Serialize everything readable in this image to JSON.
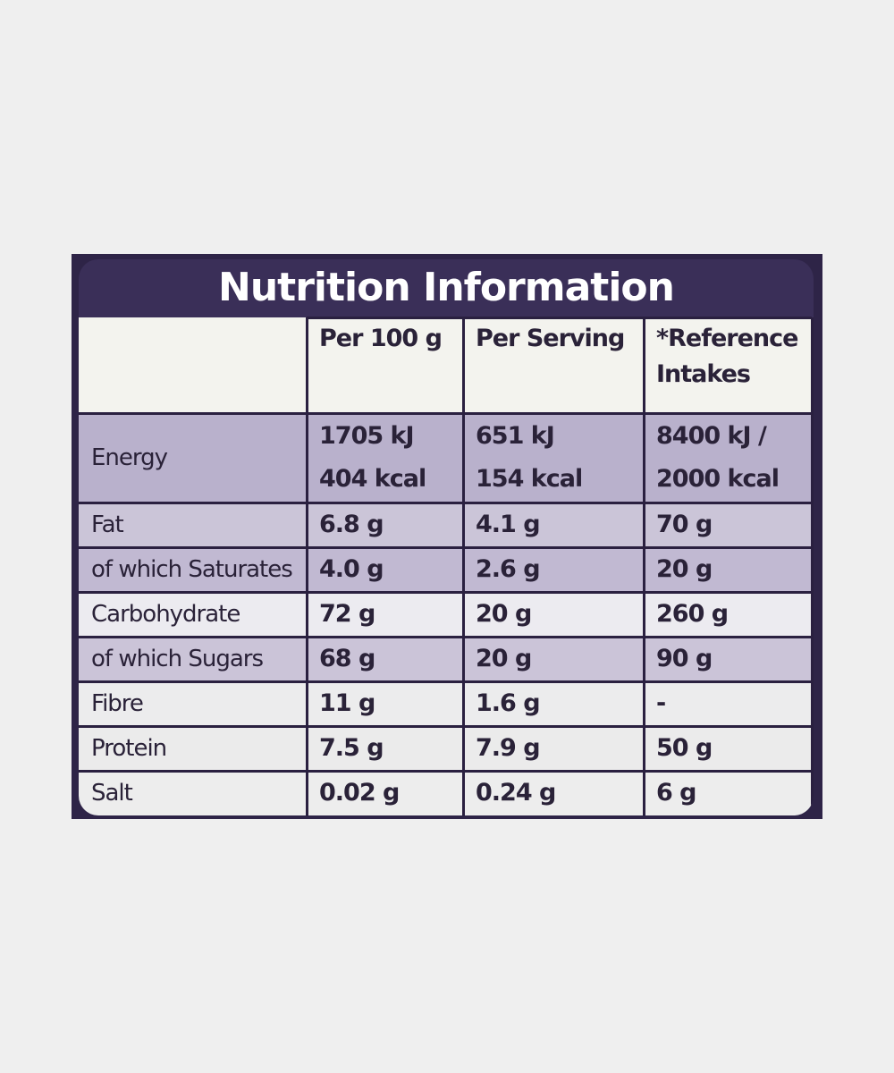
{
  "title": "Nutrition Information",
  "table": {
    "headers": [
      "Per 100 g",
      "Per Serving",
      "*Reference Intakes"
    ],
    "rows": [
      {
        "label": "Energy",
        "cells": [
          [
            "1705 kJ",
            "404 kcal"
          ],
          [
            "651 kJ",
            "154 kcal"
          ],
          [
            "8400 kJ /",
            "2000 kcal"
          ]
        ]
      },
      {
        "label": "Fat",
        "cells": [
          "6.8 g",
          "4.1 g",
          "70 g"
        ]
      },
      {
        "label": "of which Saturates",
        "cells": [
          "4.0 g",
          "2.6 g",
          "20 g"
        ]
      },
      {
        "label": "Carbohydrate",
        "cells": [
          "72 g",
          "20 g",
          "260 g"
        ]
      },
      {
        "label": "of which Sugars",
        "cells": [
          "68 g",
          "20 g",
          "90 g"
        ]
      },
      {
        "label": "Fibre",
        "cells": [
          "11 g",
          "1.6 g",
          "-"
        ]
      },
      {
        "label": "Protein",
        "cells": [
          "7.5 g",
          "7.9 g",
          "50 g"
        ]
      },
      {
        "label": "Salt",
        "cells": [
          "0.02 g",
          "0.24 g",
          "6 g"
        ]
      }
    ]
  }
}
